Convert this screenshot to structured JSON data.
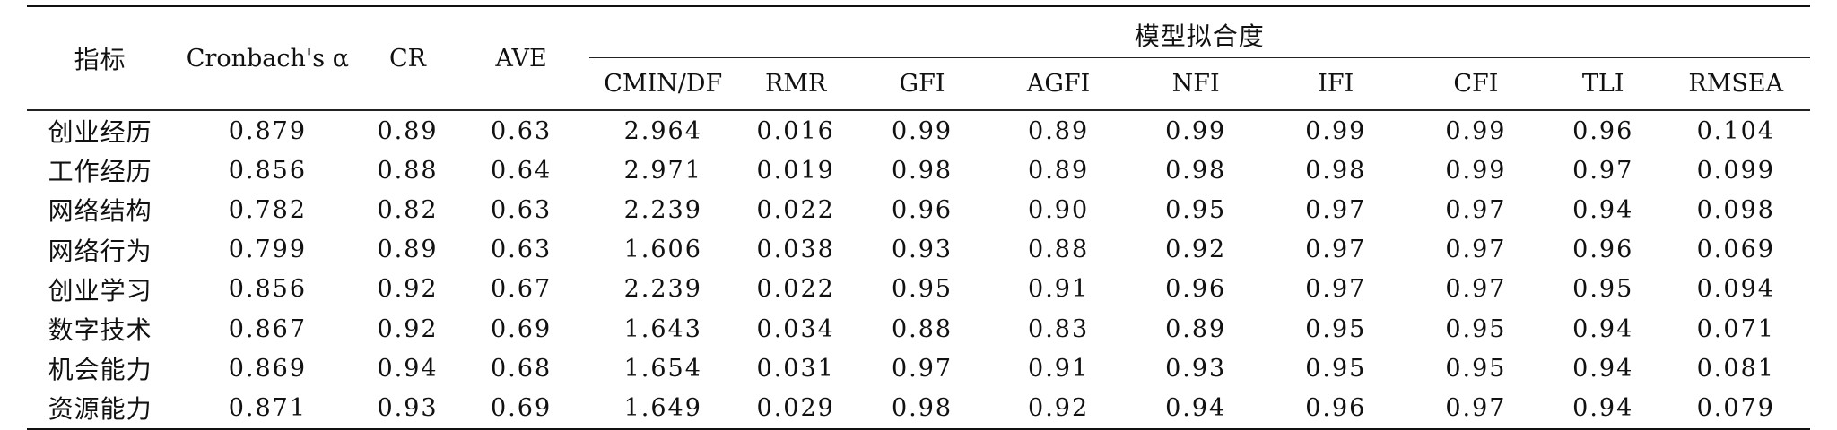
{
  "table": {
    "group_header": "模型拟合度",
    "columns": [
      "指标",
      "Cronbach's α",
      "CR",
      "AVE",
      "CMIN/DF",
      "RMR",
      "GFI",
      "AGFI",
      "NFI",
      "IFI",
      "CFI",
      "TLI",
      "RMSEA"
    ],
    "rows": [
      [
        "创业经历",
        "0.879",
        "0.89",
        "0.63",
        "2.964",
        "0.016",
        "0.99",
        "0.89",
        "0.99",
        "0.99",
        "0.99",
        "0.96",
        "0.104"
      ],
      [
        "工作经历",
        "0.856",
        "0.88",
        "0.64",
        "2.971",
        "0.019",
        "0.98",
        "0.89",
        "0.98",
        "0.98",
        "0.99",
        "0.97",
        "0.099"
      ],
      [
        "网络结构",
        "0.782",
        "0.82",
        "0.63",
        "2.239",
        "0.022",
        "0.96",
        "0.90",
        "0.95",
        "0.97",
        "0.97",
        "0.94",
        "0.098"
      ],
      [
        "网络行为",
        "0.799",
        "0.89",
        "0.63",
        "1.606",
        "0.038",
        "0.93",
        "0.88",
        "0.92",
        "0.97",
        "0.97",
        "0.96",
        "0.069"
      ],
      [
        "创业学习",
        "0.856",
        "0.92",
        "0.67",
        "2.239",
        "0.022",
        "0.95",
        "0.91",
        "0.96",
        "0.97",
        "0.97",
        "0.95",
        "0.094"
      ],
      [
        "数字技术",
        "0.867",
        "0.92",
        "0.69",
        "1.643",
        "0.034",
        "0.88",
        "0.83",
        "0.89",
        "0.95",
        "0.95",
        "0.94",
        "0.071"
      ],
      [
        "机会能力",
        "0.869",
        "0.94",
        "0.68",
        "1.654",
        "0.031",
        "0.97",
        "0.91",
        "0.93",
        "0.95",
        "0.95",
        "0.94",
        "0.081"
      ],
      [
        "资源能力",
        "0.871",
        "0.93",
        "0.69",
        "1.649",
        "0.029",
        "0.98",
        "0.92",
        "0.94",
        "0.96",
        "0.97",
        "0.94",
        "0.079"
      ]
    ]
  }
}
